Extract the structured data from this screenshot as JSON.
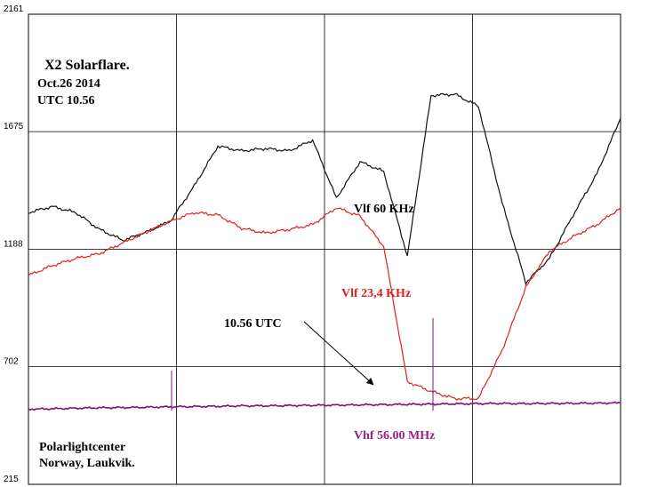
{
  "chart_data": {
    "type": "line",
    "title": "X2 Solarflare.",
    "subtitle_lines": [
      "Oct.26 2014",
      "UTC 10.56"
    ],
    "ylim": [
      215,
      2161
    ],
    "y_ticks": [
      2161,
      1675,
      1188,
      702,
      215
    ],
    "y_tick_labels": [
      "2161",
      "1675",
      "1188",
      "702",
      "215"
    ],
    "grid": true,
    "x": [
      0,
      4,
      8,
      12,
      16,
      20,
      24,
      28,
      32,
      36,
      40,
      44,
      48,
      52,
      56,
      60,
      64,
      68,
      72,
      76,
      80,
      84,
      88,
      92,
      96,
      100
    ],
    "series": [
      {
        "name": "Vlf 60 KHz",
        "color": "#111111",
        "values": [
          1340,
          1365,
          1340,
          1270,
          1225,
          1260,
          1305,
          1450,
          1615,
          1595,
          1605,
          1595,
          1640,
          1400,
          1550,
          1510,
          1160,
          1825,
          1830,
          1780,
          1380,
          1050,
          1150,
          1330,
          1500,
          1730
        ]
      },
      {
        "name": "Vlf 23,4 KHz",
        "color": "#e0201c",
        "values": [
          1080,
          1120,
          1150,
          1170,
          1215,
          1260,
          1305,
          1340,
          1330,
          1275,
          1255,
          1270,
          1290,
          1360,
          1325,
          1200,
          640,
          600,
          570,
          570,
          770,
          1030,
          1180,
          1240,
          1290,
          1360
        ]
      },
      {
        "name": "Vhf 56.00 MHz",
        "color": "#80107a",
        "values": [
          526,
          528,
          530,
          532,
          533,
          534,
          536,
          537,
          538,
          540,
          540,
          541,
          542,
          543,
          544,
          545,
          546,
          547,
          548,
          549,
          550,
          549,
          550,
          550,
          551,
          552
        ]
      }
    ],
    "annotations": {
      "vlf60_label": "Vlf 60 KHz",
      "vlf234_label": "Vlf 23,4 KHz",
      "vhf_label": "Vhf 56.00 MHz",
      "utc_marker": "10.56 UTC",
      "station_line1": "Polarlightcenter",
      "station_line2": "Norway, Laukvik."
    }
  }
}
